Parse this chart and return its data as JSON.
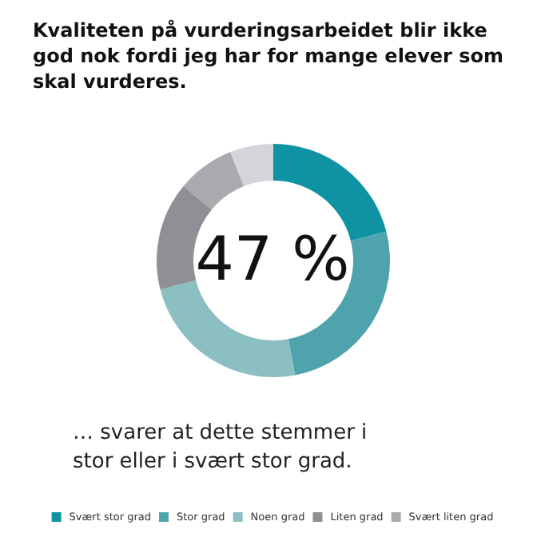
{
  "chart_data": {
    "type": "donut",
    "title": "Kvaliteten på vurderingsarbeidet blir ikke god nok fordi jeg har for mange elever som skal vurderes.",
    "categories": [
      "Svært stor grad",
      "Stor grad",
      "Noen grad",
      "Liten grad",
      "Svært liten grad",
      null
    ],
    "values": [
      21,
      26,
      24,
      15,
      8,
      6
    ],
    "colors": [
      "#0f93a3",
      "#4fa3ad",
      "#8cbfc2",
      "#8e9095",
      "#a9abaf",
      "#d3d5d8"
    ],
    "annotations": [
      "47 %",
      "… svarer at dette stemmer i stor eller i svært stor grad."
    ],
    "legend": "bottom"
  }
}
